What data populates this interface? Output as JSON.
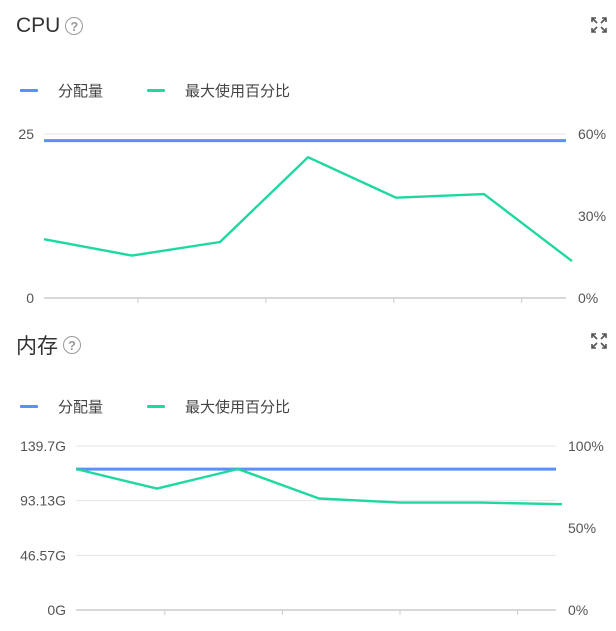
{
  "colors": {
    "allocation": "#5b8ff9",
    "max_usage": "#1fd8a0",
    "grid": "#e6e6e6",
    "axis": "#cccccc"
  },
  "cpu": {
    "title": "CPU",
    "help_icon": "question-circle-icon",
    "expand_icon": "expand-icon",
    "legend": [
      "分配量",
      "最大使用百分比"
    ],
    "chart_data": {
      "type": "line",
      "left_ticks": [
        "25",
        "0"
      ],
      "right_ticks": [
        "60%",
        "30%",
        "0%"
      ],
      "left_range": [
        0,
        25
      ],
      "right_range": [
        0,
        60
      ],
      "x_ticks": 4,
      "series": [
        {
          "name": "分配量",
          "axis": "left",
          "values": [
            24,
            24,
            24,
            24,
            24,
            24,
            24,
            24
          ]
        },
        {
          "name": "最大使用百分比",
          "axis": "right",
          "values": [
            21.5,
            15.5,
            20.5,
            51.5,
            36.7,
            38,
            13.5
          ]
        }
      ]
    }
  },
  "memory": {
    "title": "内存",
    "help_icon": "question-circle-icon",
    "expand_icon": "expand-icon",
    "legend": [
      "分配量",
      "最大使用百分比"
    ],
    "chart_data": {
      "type": "line",
      "left_ticks": [
        "139.7G",
        "93.13G",
        "46.57G",
        "0G"
      ],
      "right_ticks": [
        "100%",
        "50%",
        "0%"
      ],
      "left_range": [
        0,
        139.7
      ],
      "right_range": [
        0,
        100
      ],
      "x_ticks": 4,
      "series": [
        {
          "name": "分配量",
          "axis": "left",
          "values": [
            120,
            120,
            120,
            120,
            120,
            120,
            120,
            120
          ]
        },
        {
          "name": "最大使用百分比",
          "axis": "right",
          "values": [
            86,
            74,
            86,
            68,
            65.5,
            65.5,
            64.5
          ]
        }
      ]
    }
  }
}
